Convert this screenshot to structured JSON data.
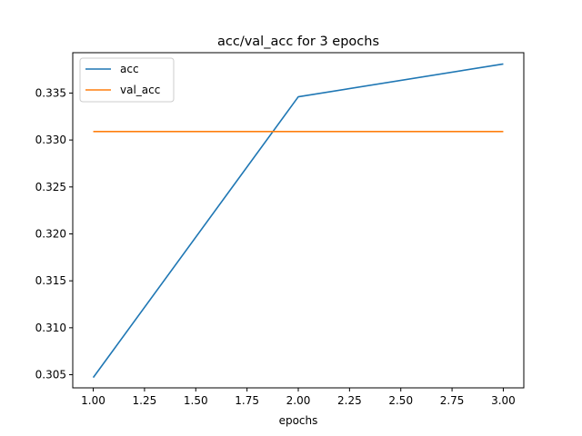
{
  "chart_data": {
    "type": "line",
    "title": "acc/val_acc for 3 epochs",
    "xlabel": "epochs",
    "ylabel": "",
    "x": [
      1.0,
      2.0,
      3.0
    ],
    "xlim": [
      0.9,
      3.1
    ],
    "ylim": [
      0.3036,
      0.3393
    ],
    "xticks": [
      1.0,
      1.25,
      1.5,
      1.75,
      2.0,
      2.25,
      2.5,
      2.75,
      3.0
    ],
    "xtick_labels": [
      "1.00",
      "1.25",
      "1.50",
      "1.75",
      "2.00",
      "2.25",
      "2.50",
      "2.75",
      "3.00"
    ],
    "yticks": [
      0.305,
      0.31,
      0.315,
      0.32,
      0.325,
      0.33,
      0.335
    ],
    "ytick_labels": [
      "0.305",
      "0.310",
      "0.315",
      "0.320",
      "0.325",
      "0.330",
      "0.335"
    ],
    "grid": false,
    "legend_position": "top-left",
    "series": [
      {
        "name": "acc",
        "values": [
          0.3047,
          0.3346,
          0.3381
        ],
        "color": "#1f77b4"
      },
      {
        "name": "val_acc",
        "values": [
          0.3309,
          0.3309,
          0.3309
        ],
        "color": "#ff7f0e"
      }
    ]
  }
}
